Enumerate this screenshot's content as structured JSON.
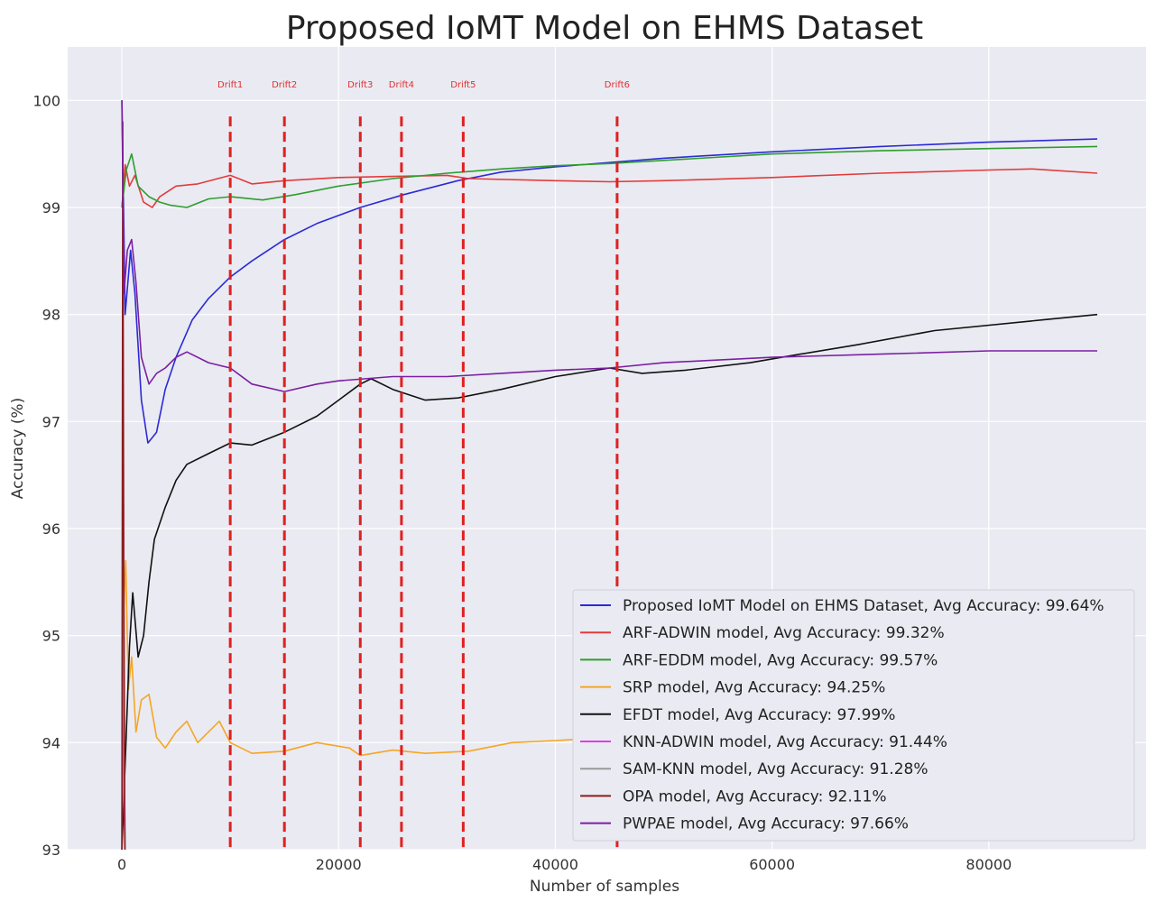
{
  "chart_data": {
    "type": "line",
    "title": "Proposed IoMT Model on EHMS Dataset",
    "xlabel": "Number of samples",
    "ylabel": "Accuracy (%)",
    "xlim": [
      -5000,
      94500
    ],
    "ylim": [
      93,
      100.5
    ],
    "xticks": [
      0,
      20000,
      40000,
      60000,
      80000
    ],
    "xtick_labels": [
      "0",
      "20000",
      "40000",
      "60000",
      "80000"
    ],
    "yticks": [
      93,
      94,
      95,
      96,
      97,
      98,
      99,
      100
    ],
    "ytick_labels": [
      "93",
      "94",
      "95",
      "96",
      "97",
      "98",
      "99",
      "100"
    ],
    "grid": true,
    "legend_position": "lower-right",
    "drift_lines": [
      {
        "label": "Drift1",
        "x": 10000
      },
      {
        "label": "Drift2",
        "x": 15000
      },
      {
        "label": "Drift3",
        "x": 22000
      },
      {
        "label": "Drift4",
        "x": 25800
      },
      {
        "label": "Drift5",
        "x": 31500
      },
      {
        "label": "Drift6",
        "x": 45700
      }
    ],
    "series": [
      {
        "name": "Proposed IoMT Model on EHMS Dataset, Avg Accuracy: 99.64%",
        "color": "#2b2bd6",
        "points": [
          [
            0,
            100
          ],
          [
            300,
            98.0
          ],
          [
            800,
            98.6
          ],
          [
            1200,
            98.2
          ],
          [
            1800,
            97.2
          ],
          [
            2400,
            96.8
          ],
          [
            3200,
            96.9
          ],
          [
            4000,
            97.3
          ],
          [
            5000,
            97.6
          ],
          [
            6500,
            97.95
          ],
          [
            8000,
            98.15
          ],
          [
            10000,
            98.35
          ],
          [
            12000,
            98.5
          ],
          [
            15000,
            98.7
          ],
          [
            18000,
            98.85
          ],
          [
            22000,
            99.0
          ],
          [
            26000,
            99.12
          ],
          [
            31000,
            99.25
          ],
          [
            35000,
            99.33
          ],
          [
            40000,
            99.38
          ],
          [
            45000,
            99.42
          ],
          [
            50000,
            99.46
          ],
          [
            60000,
            99.52
          ],
          [
            70000,
            99.57
          ],
          [
            80000,
            99.61
          ],
          [
            90000,
            99.64
          ]
        ]
      },
      {
        "name": "ARF-ADWIN model, Avg Accuracy: 99.32%",
        "color": "#e23b3b",
        "points": [
          [
            0,
            99.0
          ],
          [
            300,
            99.4
          ],
          [
            700,
            99.2
          ],
          [
            1200,
            99.3
          ],
          [
            2000,
            99.05
          ],
          [
            2800,
            99.0
          ],
          [
            3500,
            99.1
          ],
          [
            5000,
            99.2
          ],
          [
            7000,
            99.22
          ],
          [
            10000,
            99.3
          ],
          [
            12000,
            99.22
          ],
          [
            15000,
            99.25
          ],
          [
            20000,
            99.28
          ],
          [
            25000,
            99.29
          ],
          [
            30000,
            99.3
          ],
          [
            32000,
            99.27
          ],
          [
            40000,
            99.25
          ],
          [
            45000,
            99.24
          ],
          [
            50000,
            99.25
          ],
          [
            60000,
            99.28
          ],
          [
            70000,
            99.32
          ],
          [
            80000,
            99.35
          ],
          [
            84000,
            99.36
          ],
          [
            90000,
            99.32
          ]
        ]
      },
      {
        "name": "ARF-EDDM model, Avg Accuracy: 99.57%",
        "color": "#2e9e2e",
        "points": [
          [
            0,
            99.0
          ],
          [
            400,
            99.35
          ],
          [
            900,
            99.5
          ],
          [
            1500,
            99.2
          ],
          [
            2500,
            99.1
          ],
          [
            3500,
            99.05
          ],
          [
            4500,
            99.02
          ],
          [
            6000,
            99.0
          ],
          [
            8000,
            99.08
          ],
          [
            10000,
            99.1
          ],
          [
            13000,
            99.07
          ],
          [
            16000,
            99.12
          ],
          [
            20000,
            99.2
          ],
          [
            25000,
            99.27
          ],
          [
            30000,
            99.32
          ],
          [
            35000,
            99.36
          ],
          [
            40000,
            99.39
          ],
          [
            45000,
            99.41
          ],
          [
            50000,
            99.44
          ],
          [
            60000,
            99.5
          ],
          [
            70000,
            99.53
          ],
          [
            80000,
            99.55
          ],
          [
            90000,
            99.57
          ]
        ]
      },
      {
        "name": "SRP model, Avg Accuracy: 94.25%",
        "color": "#f5a623",
        "points": [
          [
            0,
            93.0
          ],
          [
            150,
            95.2
          ],
          [
            350,
            95.7
          ],
          [
            600,
            94.5
          ],
          [
            900,
            94.8
          ],
          [
            1300,
            94.1
          ],
          [
            1800,
            94.4
          ],
          [
            2500,
            94.45
          ],
          [
            3200,
            94.05
          ],
          [
            4000,
            93.95
          ],
          [
            5000,
            94.1
          ],
          [
            6000,
            94.2
          ],
          [
            7000,
            94.0
          ],
          [
            9000,
            94.2
          ],
          [
            10000,
            94.0
          ],
          [
            12000,
            93.9
          ],
          [
            15000,
            93.92
          ],
          [
            18000,
            94.0
          ],
          [
            21000,
            93.95
          ],
          [
            22000,
            93.88
          ],
          [
            25000,
            93.93
          ],
          [
            28000,
            93.9
          ],
          [
            32000,
            93.92
          ],
          [
            36000,
            94.0
          ],
          [
            40000,
            94.02
          ],
          [
            45000,
            94.05
          ],
          [
            50000,
            94.1
          ],
          [
            60000,
            94.15
          ],
          [
            70000,
            94.2
          ],
          [
            80000,
            94.22
          ],
          [
            90000,
            94.25
          ]
        ]
      },
      {
        "name": "EFDT model, Avg Accuracy: 97.99%",
        "color": "#111111",
        "points": [
          [
            0,
            93.0
          ],
          [
            300,
            93.8
          ],
          [
            700,
            94.9
          ],
          [
            1000,
            95.4
          ],
          [
            1500,
            94.8
          ],
          [
            2000,
            95.0
          ],
          [
            2500,
            95.5
          ],
          [
            3000,
            95.9
          ],
          [
            4000,
            96.2
          ],
          [
            5000,
            96.45
          ],
          [
            6000,
            96.6
          ],
          [
            8000,
            96.7
          ],
          [
            10000,
            96.8
          ],
          [
            12000,
            96.78
          ],
          [
            15000,
            96.9
          ],
          [
            18000,
            97.05
          ],
          [
            20000,
            97.2
          ],
          [
            22000,
            97.35
          ],
          [
            23000,
            97.4
          ],
          [
            25000,
            97.3
          ],
          [
            28000,
            97.2
          ],
          [
            31000,
            97.22
          ],
          [
            35000,
            97.3
          ],
          [
            40000,
            97.42
          ],
          [
            45000,
            97.5
          ],
          [
            48000,
            97.45
          ],
          [
            52000,
            97.48
          ],
          [
            58000,
            97.55
          ],
          [
            62000,
            97.62
          ],
          [
            68000,
            97.72
          ],
          [
            75000,
            97.85
          ],
          [
            85000,
            97.95
          ],
          [
            90000,
            98.0
          ]
        ]
      },
      {
        "name": "KNN-ADWIN model, Avg Accuracy: 91.44%",
        "color": "#e040e0",
        "points": [
          [
            0,
            93.0
          ],
          [
            100,
            95.6
          ],
          [
            200,
            93.4
          ],
          [
            300,
            93.0
          ]
        ]
      },
      {
        "name": "SAM-KNN model, Avg Accuracy: 91.28%",
        "color": "#999999",
        "points": [
          [
            0,
            93.0
          ],
          [
            120,
            96.3
          ],
          [
            250,
            93.5
          ],
          [
            300,
            93.0
          ]
        ]
      },
      {
        "name": "OPA model, Avg Accuracy: 92.11%",
        "color": "#8b1c1c",
        "points": [
          [
            0,
            93.0
          ],
          [
            80,
            99.8
          ],
          [
            180,
            95.5
          ],
          [
            280,
            93.0
          ]
        ]
      },
      {
        "name": "PWPAE model, Avg Accuracy: 97.66%",
        "color": "#7a1fa2",
        "points": [
          [
            0,
            100
          ],
          [
            200,
            98.2
          ],
          [
            500,
            98.6
          ],
          [
            900,
            98.7
          ],
          [
            1300,
            98.3
          ],
          [
            1800,
            97.6
          ],
          [
            2500,
            97.35
          ],
          [
            3200,
            97.45
          ],
          [
            4000,
            97.5
          ],
          [
            5000,
            97.6
          ],
          [
            6000,
            97.65
          ],
          [
            8000,
            97.55
          ],
          [
            10000,
            97.5
          ],
          [
            12000,
            97.35
          ],
          [
            15000,
            97.28
          ],
          [
            18000,
            97.35
          ],
          [
            20000,
            97.38
          ],
          [
            25000,
            97.42
          ],
          [
            30000,
            97.42
          ],
          [
            35000,
            97.45
          ],
          [
            40000,
            97.48
          ],
          [
            45000,
            97.5
          ],
          [
            50000,
            97.55
          ],
          [
            60000,
            97.6
          ],
          [
            70000,
            97.63
          ],
          [
            80000,
            97.66
          ],
          [
            90000,
            97.66
          ]
        ]
      }
    ]
  }
}
